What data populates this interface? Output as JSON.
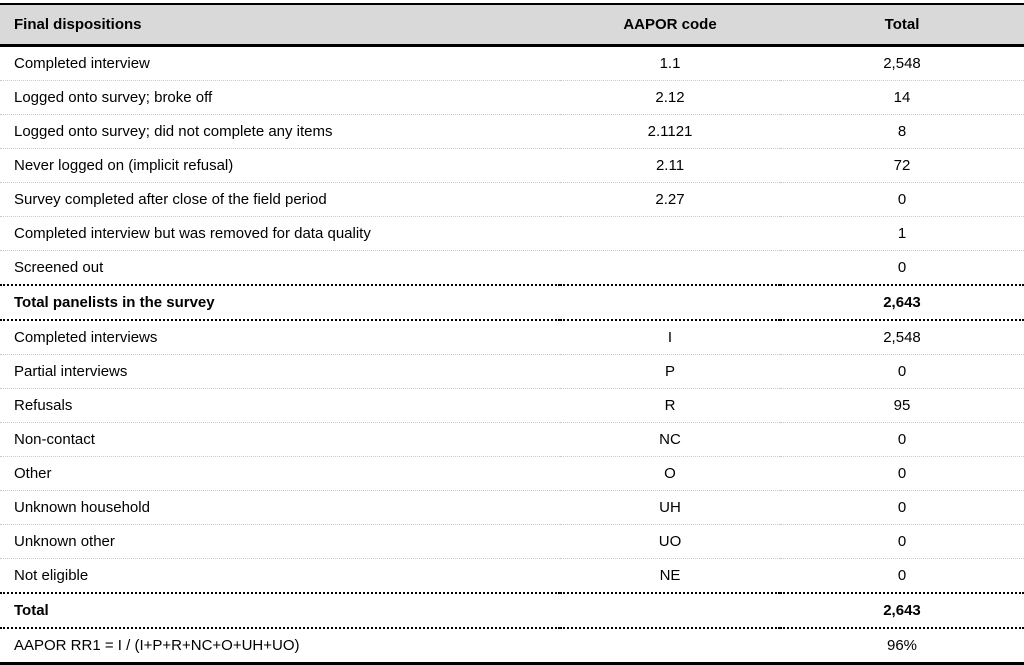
{
  "table": {
    "columns": {
      "label": "Final dispositions",
      "code": "AAPOR code",
      "total": "Total"
    },
    "rows": [
      {
        "label": "Completed interview",
        "code": "1.1",
        "total": "2,548"
      },
      {
        "label": "Logged onto survey; broke off",
        "code": "2.12",
        "total": "14"
      },
      {
        "label": "Logged onto survey; did not complete any items",
        "code": "2.1121",
        "total": "8"
      },
      {
        "label": "Never logged on (implicit refusal)",
        "code": "2.11",
        "total": "72"
      },
      {
        "label": "Survey completed after close of the field period",
        "code": "2.27",
        "total": "0"
      },
      {
        "label": "Completed interview but was removed for data quality",
        "code": "",
        "total": "1"
      },
      {
        "label": "Screened out",
        "code": "",
        "total": "0"
      },
      {
        "label": "Total panelists in the survey",
        "code": "",
        "total": "2,643"
      },
      {
        "label": "Completed interviews",
        "code": "I",
        "total": "2,548"
      },
      {
        "label": "Partial interviews",
        "code": "P",
        "total": "0"
      },
      {
        "label": "Refusals",
        "code": "R",
        "total": "95"
      },
      {
        "label": "Non-contact",
        "code": "NC",
        "total": "0"
      },
      {
        "label": "Other",
        "code": "O",
        "total": "0"
      },
      {
        "label": "Unknown household",
        "code": "UH",
        "total": "0"
      },
      {
        "label": "Unknown other",
        "code": "UO",
        "total": "0"
      },
      {
        "label": "Not eligible",
        "code": "NE",
        "total": "0"
      },
      {
        "label": "Total",
        "code": "",
        "total": "2,643"
      },
      {
        "label": "AAPOR RR1 = I / (I+P+R+NC+O+UH+UO)",
        "code": "",
        "total": "96%"
      }
    ],
    "colors": {
      "header_bg": "#d9d9d9",
      "rule": "#000000",
      "row_separator": "#c9c9c9"
    }
  }
}
